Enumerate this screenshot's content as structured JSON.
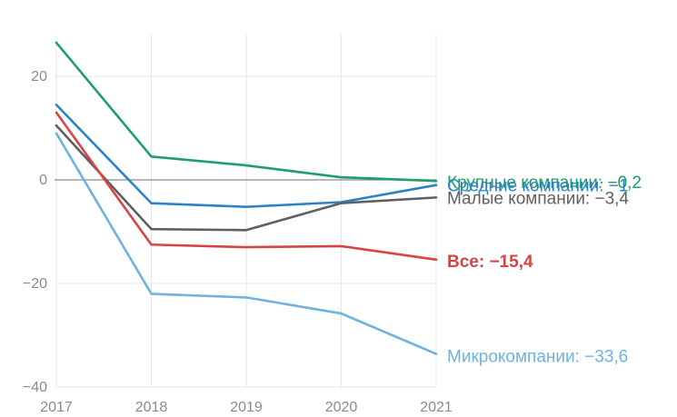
{
  "chart_data": {
    "type": "line",
    "x": [
      "2017",
      "2018",
      "2019",
      "2020",
      "2021"
    ],
    "ylim": [
      -40,
      28
    ],
    "yticks": [
      {
        "value": 20,
        "label": "20"
      },
      {
        "value": 0,
        "label": "0"
      },
      {
        "value": -20,
        "label": "−20"
      },
      {
        "value": -40,
        "label": "−40"
      }
    ],
    "grid": "vertical at each year, horizontal at each y tick",
    "series": [
      {
        "name": "Крупные компании",
        "label": "Крупные компании: −0,2",
        "color": "#1e9e6a",
        "bold": false,
        "values": [
          26.5,
          4.5,
          2.8,
          0.5,
          -0.2
        ]
      },
      {
        "name": "Средние компании",
        "label": "Средние компании: −1",
        "color": "#2b83c6",
        "bold": false,
        "values": [
          14.5,
          -4.5,
          -5.2,
          -4.3,
          -1.0
        ]
      },
      {
        "name": "Малые компании",
        "label": "Малые компании: −3,4",
        "color": "#5f5f5f",
        "bold": false,
        "values": [
          10.5,
          -9.5,
          -9.7,
          -4.5,
          -3.4
        ]
      },
      {
        "name": "Все",
        "label": "Все: −15,4",
        "color": "#d84343",
        "bold": true,
        "values": [
          13.0,
          -12.5,
          -13.0,
          -12.8,
          -15.4
        ]
      },
      {
        "name": "Микрокомпании",
        "label": "Микрокомпании: −33,6",
        "color": "#6fb2e0",
        "bold": false,
        "values": [
          9.0,
          -22.0,
          -22.7,
          -25.8,
          -33.6
        ]
      }
    ]
  }
}
